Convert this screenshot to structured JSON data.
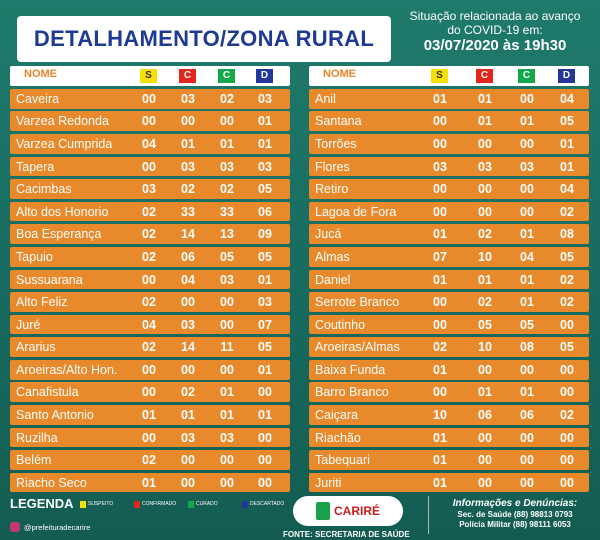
{
  "title": "DETALHAMENTO/ZONA RURAL",
  "situacao": {
    "line1": "Situação relacionada ao avanço",
    "line2": "do COVID-19 em:",
    "date": "03/07/2020 às 19h30"
  },
  "header": {
    "nome": "NOME",
    "s": "S",
    "c": "C",
    "cu": "C",
    "d": "D"
  },
  "left_rows": [
    {
      "name": "Caveira",
      "s": "00",
      "c": "03",
      "cu": "02",
      "d": "03"
    },
    {
      "name": "Varzea Redonda",
      "s": "00",
      "c": "00",
      "cu": "00",
      "d": "01"
    },
    {
      "name": "Varzea Cumprida",
      "s": "04",
      "c": "01",
      "cu": "01",
      "d": "01"
    },
    {
      "name": "Tapera",
      "s": "00",
      "c": "03",
      "cu": "03",
      "d": "03"
    },
    {
      "name": "Cacimbas",
      "s": "03",
      "c": "02",
      "cu": "02",
      "d": "05"
    },
    {
      "name": "Alto dos Honorio",
      "s": "02",
      "c": "33",
      "cu": "33",
      "d": "06"
    },
    {
      "name": "Boa Esperança",
      "s": "02",
      "c": "14",
      "cu": "13",
      "d": "09"
    },
    {
      "name": "Tapuio",
      "s": "02",
      "c": "06",
      "cu": "05",
      "d": "05"
    },
    {
      "name": "Sussuarana",
      "s": "00",
      "c": "04",
      "cu": "03",
      "d": "01"
    },
    {
      "name": "Alto Feliz",
      "s": "02",
      "c": "00",
      "cu": "00",
      "d": "03"
    },
    {
      "name": "Juré",
      "s": "04",
      "c": "03",
      "cu": "00",
      "d": "07"
    },
    {
      "name": "Ararius",
      "s": "02",
      "c": "14",
      "cu": "11",
      "d": "05"
    },
    {
      "name": "Aroeiras/Alto Hon.",
      "s": "00",
      "c": "00",
      "cu": "00",
      "d": "01"
    },
    {
      "name": "Canafistula",
      "s": "00",
      "c": "02",
      "cu": "01",
      "d": "00"
    },
    {
      "name": "Santo Antonio",
      "s": "01",
      "c": "01",
      "cu": "01",
      "d": "01"
    },
    {
      "name": "Ruzilha",
      "s": "00",
      "c": "03",
      "cu": "03",
      "d": "00"
    },
    {
      "name": "Belém",
      "s": "02",
      "c": "00",
      "cu": "00",
      "d": "00"
    },
    {
      "name": "Riacho Seco",
      "s": "01",
      "c": "00",
      "cu": "00",
      "d": "00"
    }
  ],
  "right_rows": [
    {
      "name": "Anil",
      "s": "01",
      "c": "01",
      "cu": "00",
      "d": "04"
    },
    {
      "name": "Santana",
      "s": "00",
      "c": "01",
      "cu": "01",
      "d": "05"
    },
    {
      "name": "Torrões",
      "s": "00",
      "c": "00",
      "cu": "00",
      "d": "01"
    },
    {
      "name": "Flores",
      "s": "03",
      "c": "03",
      "cu": "03",
      "d": "01"
    },
    {
      "name": "Retiro",
      "s": "00",
      "c": "00",
      "cu": "00",
      "d": "04"
    },
    {
      "name": "Lagoa de Fora",
      "s": "00",
      "c": "00",
      "cu": "00",
      "d": "02"
    },
    {
      "name": "Jucá",
      "s": "01",
      "c": "02",
      "cu": "01",
      "d": "08"
    },
    {
      "name": "Almas",
      "s": "07",
      "c": "10",
      "cu": "04",
      "d": "05"
    },
    {
      "name": "Daniel",
      "s": "01",
      "c": "01",
      "cu": "01",
      "d": "02"
    },
    {
      "name": "Serrote Branco",
      "s": "00",
      "c": "02",
      "cu": "01",
      "d": "02"
    },
    {
      "name": "Coutinho",
      "s": "00",
      "c": "05",
      "cu": "05",
      "d": "00"
    },
    {
      "name": "Aroeiras/Almas",
      "s": "02",
      "c": "10",
      "cu": "08",
      "d": "05"
    },
    {
      "name": "Baixa Funda",
      "s": "01",
      "c": "00",
      "cu": "00",
      "d": "00"
    },
    {
      "name": "Barro Branco",
      "s": "00",
      "c": "01",
      "cu": "01",
      "d": "00"
    },
    {
      "name": "Caiçara",
      "s": "10",
      "c": "06",
      "cu": "06",
      "d": "02"
    },
    {
      "name": "Riachão",
      "s": "01",
      "c": "00",
      "cu": "00",
      "d": "00"
    },
    {
      "name": "Tabequari",
      "s": "01",
      "c": "00",
      "cu": "00",
      "d": "00"
    },
    {
      "name": "Juriti",
      "s": "01",
      "c": "00",
      "cu": "00",
      "d": "00"
    }
  ],
  "legend": {
    "label": "LEGENDA",
    "items": [
      {
        "text": "SUSPEITO",
        "color": "#f5e000"
      },
      {
        "text": "CONFIRMADO",
        "color": "#e0261d"
      },
      {
        "text": "CURADO",
        "color": "#13a84a"
      },
      {
        "text": "DESCARTADO",
        "color": "#23379a"
      }
    ]
  },
  "instagram": "@prefeituradecarire",
  "logo_text": "CARIRÉ",
  "fonte": "FONTE: SECRETARIA DE SAÚDE",
  "info": {
    "title": "Informações e Denúncias:",
    "line1": "Sec. de Saúde  (88) 98813 0793",
    "line2": "Polícia Militar  (88) 98111 6053"
  },
  "colors": {
    "accent_orange": "#e8892b",
    "background": "#1d7366",
    "title_blue": "#1f3a93"
  }
}
